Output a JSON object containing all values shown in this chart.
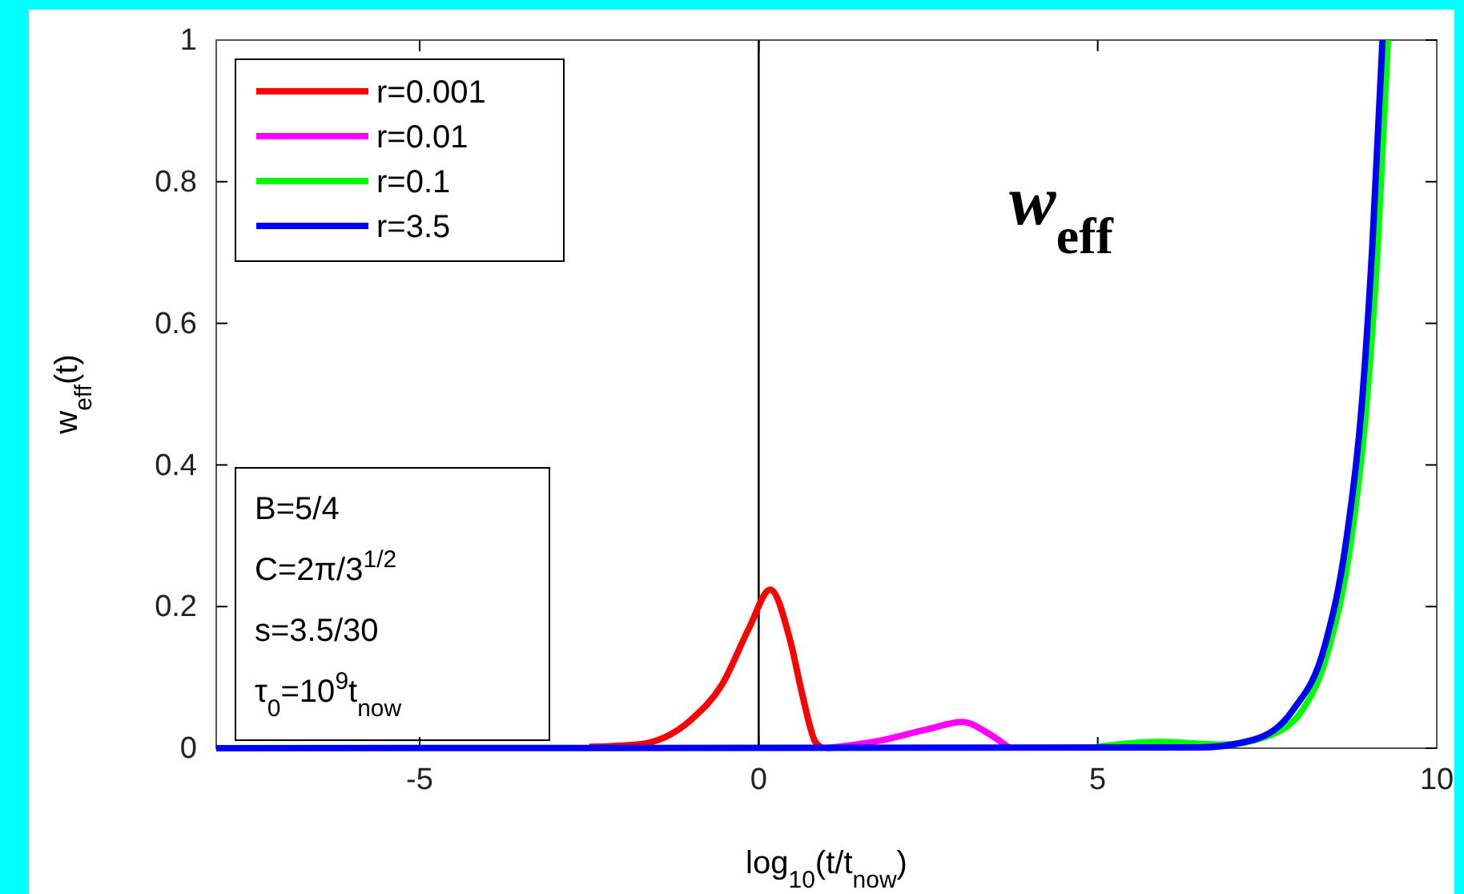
{
  "chart_data": {
    "type": "line",
    "title": "w$_{eff}$",
    "xlabel": "log$_{10}$(t/t$_{now}$)",
    "ylabel": "w$_{eff}$(t)",
    "xlim": [
      -8,
      10
    ],
    "xticks": [
      -5,
      0,
      5,
      10
    ],
    "ylim": [
      0,
      1
    ],
    "yticks": [
      0,
      0.2,
      0.4,
      0.6,
      0.8,
      1
    ],
    "grid": false,
    "legend": "top left",
    "line_style": "solid",
    "marker": "none",
    "ref_lines": [
      {
        "axis": "x",
        "value": 0,
        "color": "#000000"
      }
    ],
    "annotations": [
      "B=5/4",
      "C=2π/3$^{1/2}$",
      "s=3.5/30",
      "τ$_{0}$=10$^{9}$t$_{now}$"
    ],
    "series": [
      {
        "name": "r=0.001",
        "color": "#ff0000",
        "x": [
          -2.5,
          -1.8,
          -1.0,
          -0.54,
          -0.14,
          0.17,
          0.47,
          0.64,
          0.83,
          0.95
        ],
        "values": [
          0.002,
          0.005,
          0.04,
          0.09,
          0.17,
          0.224,
          0.15,
          0.077,
          0.01,
          0
        ]
      },
      {
        "name": "r=0.01",
        "color": "#ff00ff",
        "x": [
          1.0,
          1.75,
          2.5,
          3.0,
          3.4,
          3.7
        ],
        "values": [
          0,
          0.01,
          0.027,
          0.037,
          0.02,
          0
        ]
      },
      {
        "name": "r=0.1",
        "color": "#00ff00",
        "x": [
          5.0,
          5.9,
          6.84,
          7.48,
          8.02,
          8.42,
          8.73,
          8.96,
          9.13,
          9.28
        ],
        "values": [
          0.002,
          0.009,
          0.005,
          0.016,
          0.054,
          0.145,
          0.29,
          0.48,
          0.71,
          1
        ]
      },
      {
        "name": "r=3.5",
        "color": "#0000ff",
        "x": [
          -8,
          6.5,
          7.3,
          7.88,
          8.35,
          8.66,
          8.89,
          9.05,
          9.2
        ],
        "values": [
          0,
          0.001,
          0.012,
          0.054,
          0.145,
          0.29,
          0.48,
          0.71,
          1
        ]
      }
    ]
  }
}
